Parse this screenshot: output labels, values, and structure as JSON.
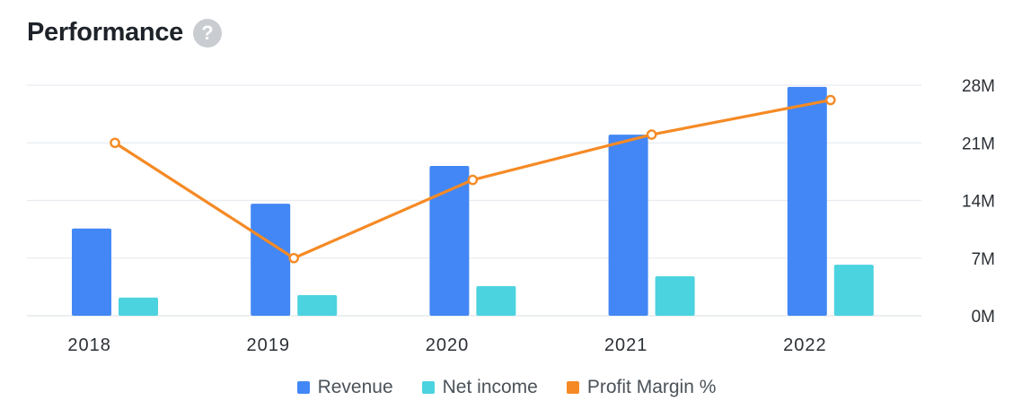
{
  "header": {
    "title": "Performance",
    "help_glyph": "?"
  },
  "colors": {
    "revenue": "#4287f5",
    "net_income": "#4cd3e0",
    "margin": "#f58a25",
    "grid": "#e8ebf0",
    "axis": "#dfe3e8"
  },
  "chart_data": {
    "type": "bar",
    "categories": [
      "2018",
      "2019",
      "2020",
      "2021",
      "2022"
    ],
    "series": [
      {
        "name": "Revenue",
        "kind": "bar",
        "color": "#4287f5",
        "values": [
          10.6,
          13.6,
          18.2,
          22.0,
          27.8
        ]
      },
      {
        "name": "Net income",
        "kind": "bar",
        "color": "#4cd3e0",
        "values": [
          2.2,
          2.5,
          3.6,
          4.8,
          6.2
        ]
      },
      {
        "name": "Profit Margin %",
        "kind": "line",
        "color": "#f58a25",
        "values": [
          21,
          7,
          16.5,
          22,
          26.2
        ]
      }
    ],
    "y_ticks": [
      "0M",
      "7M",
      "14M",
      "21M",
      "28M"
    ],
    "ylim": [
      0,
      28
    ],
    "y_axis_side": "right",
    "grid": true,
    "legend_position": "bottom-center"
  }
}
